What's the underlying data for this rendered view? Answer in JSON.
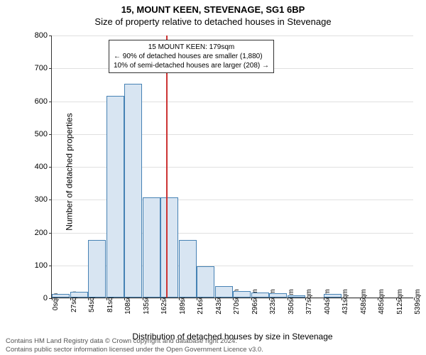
{
  "title_main": "15, MOUNT KEEN, STEVENAGE, SG1 6BP",
  "title_sub": "Size of property relative to detached houses in Stevenage",
  "chart": {
    "type": "histogram",
    "bar_color": "#d8e5f2",
    "bar_border_color": "#4682b4",
    "background_color": "#ffffff",
    "grid_color": "#e0e0e0",
    "y_axis_label": "Number of detached properties",
    "x_axis_label": "Distribution of detached houses by size in Stevenage",
    "ylim": [
      0,
      800
    ],
    "ytick_step": 100,
    "y_ticks": [
      0,
      100,
      200,
      300,
      400,
      500,
      600,
      700,
      800
    ],
    "x_tick_labels": [
      "0sqm",
      "27sqm",
      "54sqm",
      "81sqm",
      "108sqm",
      "135sqm",
      "162sqm",
      "189sqm",
      "216sqm",
      "243sqm",
      "270sqm",
      "296sqm",
      "323sqm",
      "350sqm",
      "377sqm",
      "404sqm",
      "431sqm",
      "458sqm",
      "485sqm",
      "512sqm",
      "539sqm"
    ],
    "bar_values": [
      10,
      18,
      175,
      615,
      650,
      305,
      305,
      175,
      95,
      35,
      20,
      15,
      12,
      6,
      0,
      10,
      0,
      0,
      0,
      0
    ],
    "reference_value_sqm": 179,
    "x_max_sqm": 566,
    "reference_line_color": "#cc3333"
  },
  "annotation": {
    "line1": "15 MOUNT KEEN: 179sqm",
    "line2": "← 90% of detached houses are smaller (1,880)",
    "line3": "10% of semi-detached houses are larger (208) →"
  },
  "footer": {
    "line1": "Contains HM Land Registry data © Crown copyright and database right 2024.",
    "line2": "Contains public sector information licensed under the Open Government Licence v3.0."
  }
}
